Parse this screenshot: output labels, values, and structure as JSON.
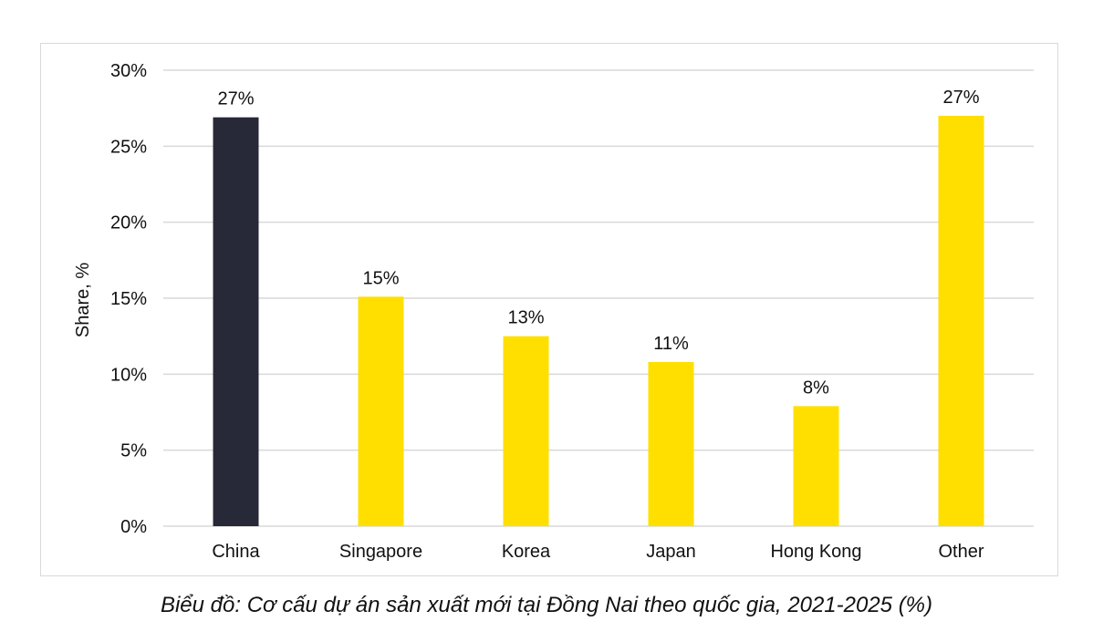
{
  "chart_data": {
    "type": "bar",
    "categories": [
      "China",
      "Singapore",
      "Korea",
      "Japan",
      "Hong Kong",
      "Other"
    ],
    "values": [
      26.9,
      15.1,
      12.5,
      10.8,
      7.9,
      27.0
    ],
    "data_labels": [
      "27%",
      "15%",
      "13%",
      "11%",
      "8%",
      "27%"
    ],
    "ylabel": "Share, %",
    "xlabel": "",
    "ylim": [
      0,
      30
    ],
    "yticks": [
      0,
      5,
      10,
      15,
      20,
      25,
      30
    ],
    "ytick_labels": [
      "0%",
      "5%",
      "10%",
      "15%",
      "20%",
      "25%",
      "30%"
    ],
    "grid": true,
    "colors": [
      "#272838",
      "#ffdf00",
      "#ffdf00",
      "#ffdf00",
      "#ffdf00",
      "#ffdf00"
    ],
    "gridline_color": "#d9d9d9"
  },
  "caption": "Biểu đồ: Cơ cấu dự án sản xuất mới tại Đồng Nai theo quốc gia, 2021-2025 (%)"
}
